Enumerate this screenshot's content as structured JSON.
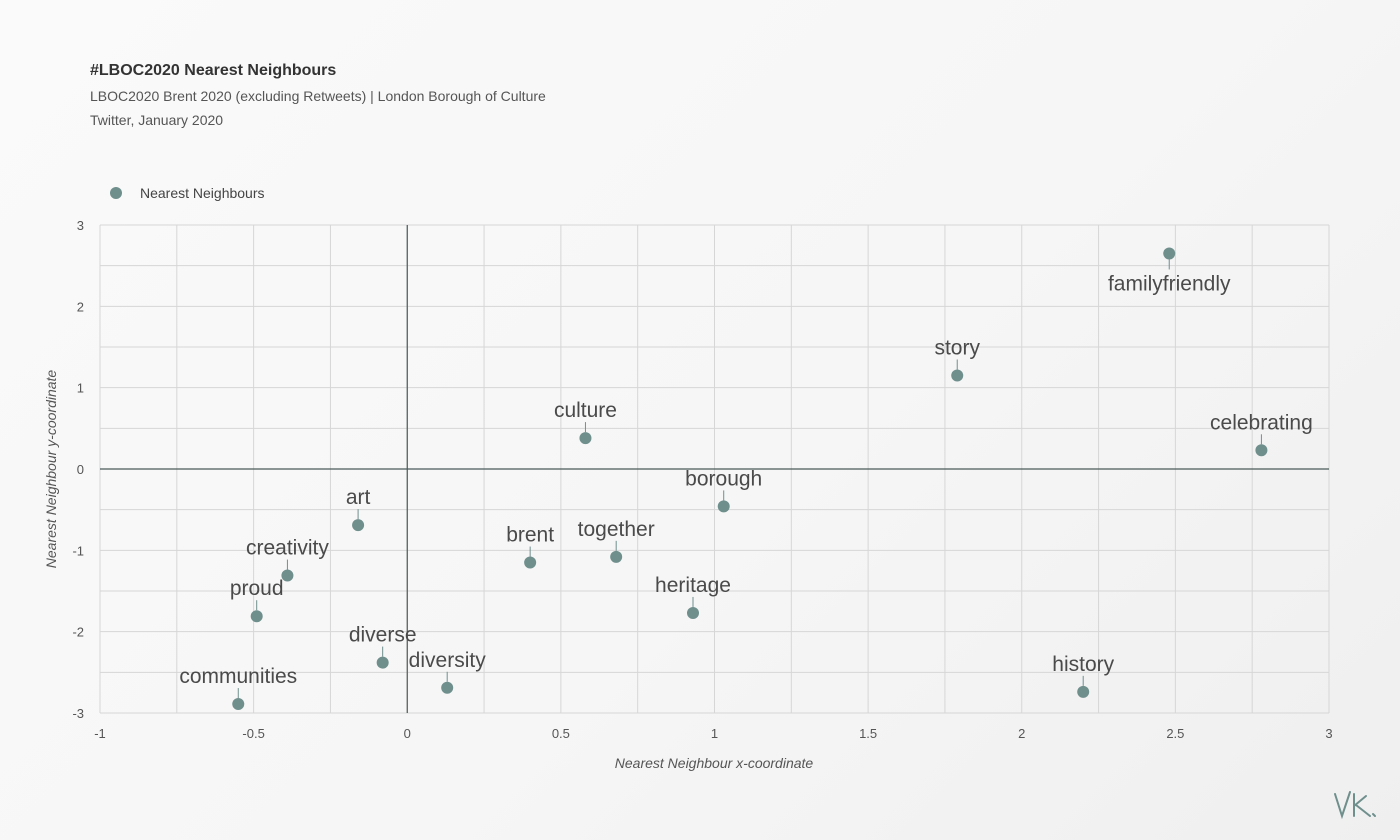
{
  "header": {
    "title": "#LBOC2020 Nearest Neighbours",
    "subtitle1": "LBOC2020 Brent 2020 (excluding Retweets)  |  London Borough of Culture",
    "subtitle2": "Twitter, January 2020"
  },
  "legend": {
    "label": "Nearest Neighbours",
    "color": "#6f8f8d"
  },
  "colors": {
    "point": "#6f8f8d",
    "grid": "#d6d6d6",
    "axis": "#4a5a58",
    "label": "#4a4a4a"
  },
  "signature": {
    "text": "VK"
  },
  "chart_data": {
    "type": "scatter",
    "xlabel": "Nearest Neighbour x-coordinate",
    "ylabel": "Nearest Neighbour y-coordinate",
    "xlim": [
      -1,
      3
    ],
    "ylim": [
      -3,
      3
    ],
    "xticks": [
      -1,
      -0.5,
      0,
      0.5,
      1,
      1.5,
      2,
      2.5,
      3
    ],
    "xtick_labels": [
      "-1",
      "-0.5",
      "0",
      "0.5",
      "1",
      "1.5",
      "2",
      "2.5",
      "3"
    ],
    "yticks": [
      -3,
      -2,
      -1,
      0,
      1,
      2,
      3
    ],
    "ytick_labels": [
      "-3",
      "-2",
      "-1",
      "0",
      "1",
      "2",
      "3"
    ],
    "grid": true,
    "legend_position": "top-left",
    "series": [
      {
        "name": "Nearest Neighbours",
        "points": [
          {
            "label": "familyfriendly",
            "x": 2.48,
            "y": 2.65,
            "label_pos": "below"
          },
          {
            "label": "story",
            "x": 1.79,
            "y": 1.15,
            "label_pos": "above"
          },
          {
            "label": "celebrating",
            "x": 2.78,
            "y": 0.23,
            "label_pos": "above"
          },
          {
            "label": "culture",
            "x": 0.58,
            "y": 0.38,
            "label_pos": "above"
          },
          {
            "label": "borough",
            "x": 1.03,
            "y": -0.46,
            "label_pos": "above"
          },
          {
            "label": "art",
            "x": -0.16,
            "y": -0.69,
            "label_pos": "above"
          },
          {
            "label": "together",
            "x": 0.68,
            "y": -1.08,
            "label_pos": "above"
          },
          {
            "label": "brent",
            "x": 0.4,
            "y": -1.15,
            "label_pos": "above"
          },
          {
            "label": "creativity",
            "x": -0.39,
            "y": -1.31,
            "label_pos": "above"
          },
          {
            "label": "heritage",
            "x": 0.93,
            "y": -1.77,
            "label_pos": "above"
          },
          {
            "label": "proud",
            "x": -0.49,
            "y": -1.81,
            "label_pos": "above"
          },
          {
            "label": "diverse",
            "x": -0.08,
            "y": -2.38,
            "label_pos": "above"
          },
          {
            "label": "diversity",
            "x": 0.13,
            "y": -2.69,
            "label_pos": "above"
          },
          {
            "label": "history",
            "x": 2.2,
            "y": -2.74,
            "label_pos": "above"
          },
          {
            "label": "communities",
            "x": -0.55,
            "y": -2.89,
            "label_pos": "above"
          }
        ]
      }
    ]
  }
}
